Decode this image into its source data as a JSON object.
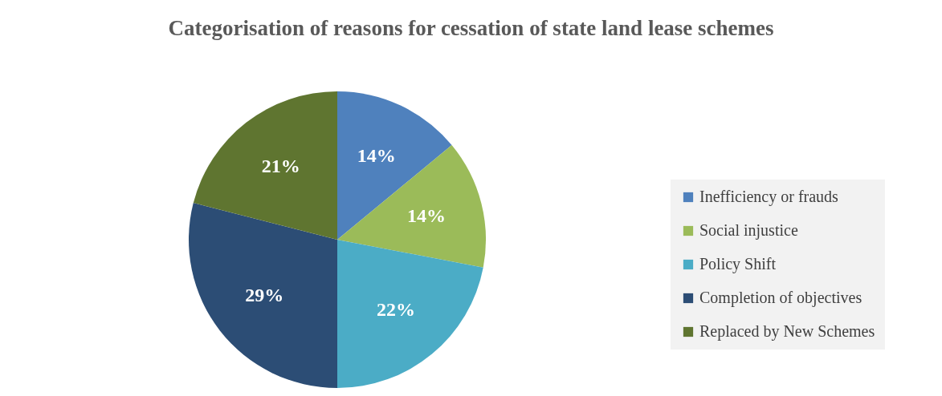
{
  "chart_data": {
    "type": "pie",
    "title": "Categorisation of reasons for cessation of state land lease schemes",
    "categories": [
      "Inefficiency or frauds",
      "Social injustice",
      "Policy Shift",
      "Completion of objectives",
      "Replaced by New Schemes"
    ],
    "values": [
      14,
      14,
      22,
      29,
      21
    ],
    "colors": [
      "#4f81bd",
      "#9bbb59",
      "#4bacc6",
      "#2c4d75",
      "#5f7530"
    ],
    "value_labels": [
      "14%",
      "14%",
      "22%",
      "29%",
      "21%"
    ],
    "legend": "right"
  }
}
